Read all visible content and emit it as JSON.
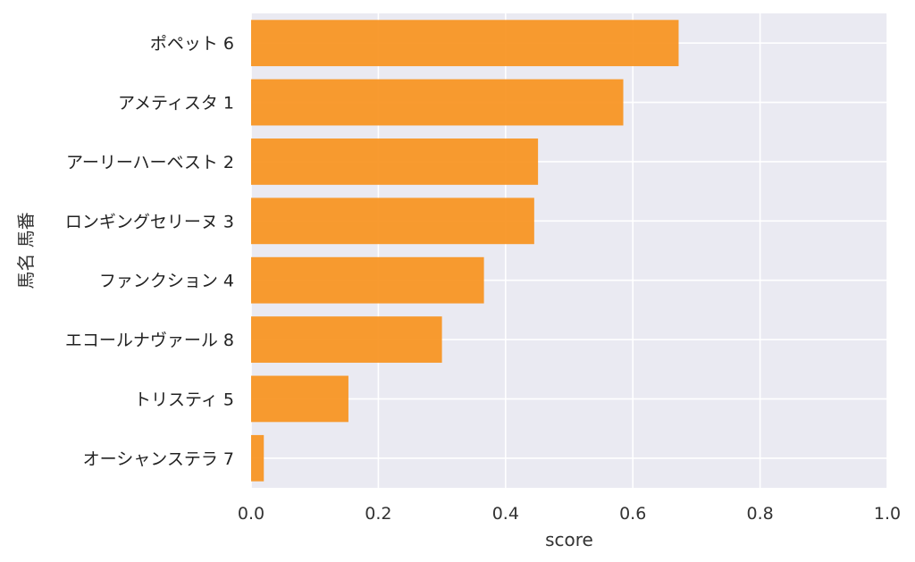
{
  "chart_data": {
    "type": "bar",
    "orientation": "horizontal",
    "categories": [
      "ポペット 6",
      "アメティスタ 1",
      "アーリーハーベスト 2",
      "ロンギングセリーヌ 3",
      "ファンクション 4",
      "エコールナヴァール 8",
      "トリスティ 5",
      "オーシャンステラ 7"
    ],
    "values": [
      0.672,
      0.585,
      0.451,
      0.445,
      0.366,
      0.3,
      0.153,
      0.02
    ],
    "title": "",
    "xlabel": "score",
    "ylabel": "馬名 馬番",
    "xlim": [
      0.0,
      1.0
    ],
    "xticks": [
      "0.0",
      "0.2",
      "0.4",
      "0.6",
      "0.8",
      "1.0"
    ],
    "grid": true,
    "bar_color": "#f7931e",
    "plot_background": "#eaeaf2",
    "grid_color": "#ffffff"
  }
}
